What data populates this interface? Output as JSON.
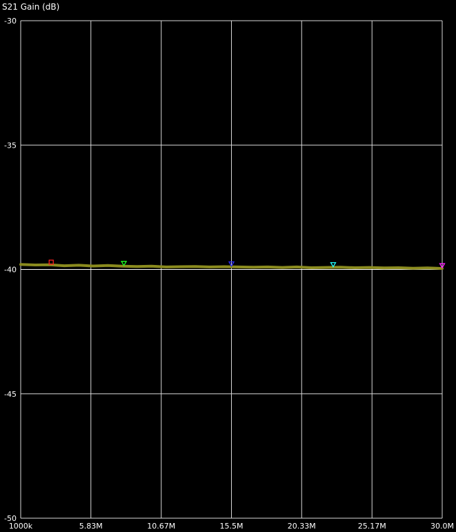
{
  "chart_data": {
    "type": "line",
    "title": "S21 Gain (dB)",
    "xlabel": "",
    "ylabel": "S21 Gain (dB)",
    "xlim": [
      1000000,
      30000000
    ],
    "ylim": [
      -50,
      -30
    ],
    "yticks": [
      -30,
      -35,
      -40,
      -45,
      -50
    ],
    "xticks": [
      {
        "value": 1000000,
        "label": "1000k"
      },
      {
        "value": 5830000,
        "label": "5.83M"
      },
      {
        "value": 10670000,
        "label": "10.67M"
      },
      {
        "value": 15500000,
        "label": "15.5M"
      },
      {
        "value": 20330000,
        "label": "20.33M"
      },
      {
        "value": 25170000,
        "label": "25.17M"
      },
      {
        "value": 30000000,
        "label": "30.0M"
      }
    ],
    "grid": true,
    "series": [
      {
        "name": "S21 Gain",
        "color": "#8b8b1e",
        "x": [
          1000000,
          2000000,
          3000000,
          4000000,
          5000000,
          6000000,
          7000000,
          8000000,
          9000000,
          10000000,
          11000000,
          12000000,
          13000000,
          14000000,
          15000000,
          16000000,
          17000000,
          18000000,
          19000000,
          20000000,
          21000000,
          22000000,
          23000000,
          24000000,
          25000000,
          26000000,
          27000000,
          28000000,
          29000000,
          30000000
        ],
        "y": [
          -39.8,
          -39.82,
          -39.81,
          -39.85,
          -39.83,
          -39.86,
          -39.84,
          -39.87,
          -39.88,
          -39.87,
          -39.9,
          -39.89,
          -39.88,
          -39.9,
          -39.89,
          -39.9,
          -39.91,
          -39.9,
          -39.92,
          -39.9,
          -39.93,
          -39.92,
          -39.91,
          -39.93,
          -39.92,
          -39.94,
          -39.93,
          -39.95,
          -39.94,
          -39.96
        ]
      }
    ],
    "reference_line": {
      "value": -40,
      "color": "#ffffff"
    },
    "markers": [
      {
        "id": 1,
        "x": 3100000,
        "y": -39.82,
        "color": "#ff2020",
        "shape": "square"
      },
      {
        "id": 2,
        "x": 8100000,
        "y": -39.87,
        "color": "#20ff20",
        "shape": "triangle"
      },
      {
        "id": 3,
        "x": 15500000,
        "y": -39.89,
        "color": "#3030ff",
        "shape": "triangle"
      },
      {
        "id": 4,
        "x": 22500000,
        "y": -39.92,
        "color": "#20ffff",
        "shape": "triangle"
      },
      {
        "id": 5,
        "x": 30000000,
        "y": -39.96,
        "color": "#ff20ff",
        "shape": "triangle"
      }
    ]
  }
}
